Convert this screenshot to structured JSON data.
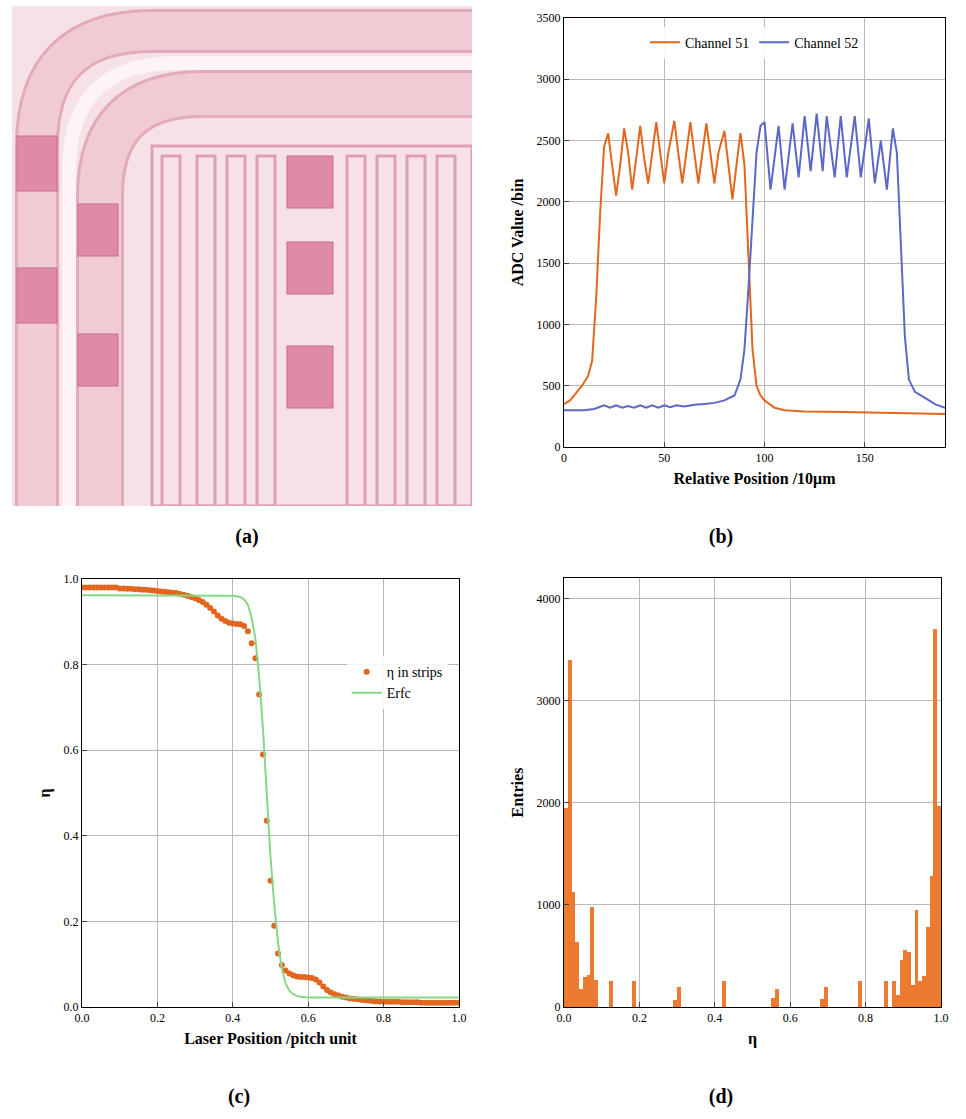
{
  "image_panel": {
    "label": "(a)"
  },
  "chart_data": [
    {
      "type": "line",
      "label": "(b)",
      "x_label": "Relative Position /10μm",
      "y_label": "ADC Value /bin",
      "xlim": [
        0,
        190
      ],
      "xticks": [
        0,
        50,
        100,
        150
      ],
      "ylim": [
        0,
        3500
      ],
      "yticks": [
        0,
        500,
        1000,
        1500,
        2000,
        2500,
        3000,
        3500
      ],
      "grid": true,
      "legend": "top",
      "series": [
        {
          "name": "Channel 51",
          "color": "#e2661f",
          "line_style": "solid",
          "x": [
            0,
            3,
            6,
            9,
            12,
            14,
            16,
            18,
            20,
            22,
            24,
            26,
            28,
            30,
            32,
            34,
            36,
            38,
            40,
            42,
            44,
            46,
            48,
            50,
            52,
            55,
            57,
            59,
            61,
            63,
            65,
            67,
            69,
            71,
            73,
            75,
            77,
            80,
            82,
            84,
            86,
            88,
            90,
            92,
            94,
            96,
            98,
            100,
            105,
            110,
            120,
            140,
            160,
            175,
            190
          ],
          "values": [
            350,
            380,
            440,
            500,
            580,
            700,
            1200,
            1900,
            2450,
            2560,
            2300,
            2050,
            2300,
            2600,
            2400,
            2100,
            2350,
            2620,
            2350,
            2150,
            2400,
            2650,
            2400,
            2150,
            2400,
            2660,
            2400,
            2150,
            2400,
            2650,
            2400,
            2150,
            2400,
            2640,
            2400,
            2150,
            2400,
            2580,
            2300,
            2020,
            2300,
            2560,
            2300,
            1500,
            800,
            500,
            420,
            380,
            320,
            300,
            290,
            285,
            280,
            275,
            270
          ]
        },
        {
          "name": "Channel 52",
          "color": "#5b68c6",
          "line_style": "solid",
          "x": [
            0,
            10,
            15,
            20,
            23,
            26,
            29,
            32,
            35,
            38,
            41,
            44,
            47,
            50,
            53,
            56,
            60,
            65,
            70,
            75,
            80,
            85,
            88,
            90,
            92,
            94,
            96,
            98,
            100,
            103,
            107,
            110,
            114,
            117,
            120,
            123,
            126,
            129,
            131,
            135,
            138,
            141,
            145,
            148,
            152,
            155,
            158,
            161,
            164,
            166,
            168,
            170,
            172,
            175,
            180,
            185,
            190
          ],
          "values": [
            300,
            300,
            310,
            340,
            320,
            340,
            320,
            335,
            320,
            340,
            320,
            340,
            320,
            340,
            325,
            340,
            330,
            345,
            350,
            360,
            380,
            420,
            550,
            800,
            1300,
            1900,
            2400,
            2620,
            2650,
            2100,
            2620,
            2100,
            2640,
            2200,
            2700,
            2250,
            2720,
            2250,
            2700,
            2200,
            2700,
            2200,
            2700,
            2200,
            2680,
            2150,
            2500,
            2100,
            2600,
            2400,
            1600,
            900,
            550,
            450,
            400,
            350,
            320
          ]
        }
      ]
    },
    {
      "type": "scatter",
      "label": "(c)",
      "x_label": "Laser Position /pitch unit",
      "y_label": "η",
      "xlim": [
        0,
        1
      ],
      "xticks": [
        {
          "value": 0,
          "label": "0.0"
        },
        0.2,
        0.4,
        0.6,
        0.8,
        {
          "value": 1,
          "label": "1.0"
        }
      ],
      "ylim": [
        0,
        1
      ],
      "yticks": [
        {
          "value": 0,
          "label": "0.0"
        },
        0.2,
        0.4,
        0.6,
        0.8,
        {
          "value": 1,
          "label": "1.0"
        }
      ],
      "grid": true,
      "legend": "right",
      "series": [
        {
          "name": "η in strips",
          "type": "scatter",
          "marker": "circle",
          "color": "#e2661f",
          "x": [
            0,
            0.01,
            0.02,
            0.03,
            0.04,
            0.05,
            0.06,
            0.07,
            0.08,
            0.09,
            0.1,
            0.11,
            0.12,
            0.13,
            0.14,
            0.15,
            0.16,
            0.17,
            0.18,
            0.19,
            0.2,
            0.21,
            0.22,
            0.23,
            0.24,
            0.25,
            0.26,
            0.27,
            0.28,
            0.29,
            0.3,
            0.31,
            0.32,
            0.33,
            0.34,
            0.35,
            0.36,
            0.37,
            0.38,
            0.39,
            0.4,
            0.41,
            0.42,
            0.43,
            0.44,
            0.45,
            0.46,
            0.47,
            0.48,
            0.49,
            0.5,
            0.51,
            0.52,
            0.53,
            0.54,
            0.55,
            0.56,
            0.57,
            0.58,
            0.59,
            0.6,
            0.61,
            0.62,
            0.63,
            0.64,
            0.65,
            0.66,
            0.67,
            0.68,
            0.69,
            0.7,
            0.71,
            0.72,
            0.73,
            0.74,
            0.75,
            0.76,
            0.77,
            0.78,
            0.79,
            0.8,
            0.81,
            0.82,
            0.83,
            0.84,
            0.85,
            0.86,
            0.87,
            0.88,
            0.89,
            0.9,
            0.91,
            0.92,
            0.93,
            0.94,
            0.95,
            0.96,
            0.97,
            0.98,
            0.99,
            1
          ],
          "values": [
            0.98,
            0.98,
            0.98,
            0.98,
            0.98,
            0.98,
            0.98,
            0.98,
            0.98,
            0.98,
            0.978,
            0.978,
            0.977,
            0.977,
            0.976,
            0.976,
            0.975,
            0.975,
            0.974,
            0.973,
            0.972,
            0.971,
            0.97,
            0.969,
            0.968,
            0.967,
            0.965,
            0.963,
            0.961,
            0.958,
            0.955,
            0.951,
            0.946,
            0.94,
            0.932,
            0.924,
            0.915,
            0.907,
            0.902,
            0.898,
            0.896,
            0.895,
            0.894,
            0.89,
            0.878,
            0.85,
            0.815,
            0.73,
            0.59,
            0.435,
            0.295,
            0.19,
            0.125,
            0.098,
            0.085,
            0.078,
            0.074,
            0.071,
            0.07,
            0.07,
            0.069,
            0.068,
            0.064,
            0.057,
            0.048,
            0.04,
            0.034,
            0.03,
            0.027,
            0.024,
            0.022,
            0.02,
            0.019,
            0.018,
            0.017,
            0.016,
            0.015,
            0.014,
            0.013,
            0.013,
            0.012,
            0.012,
            0.012,
            0.012,
            0.012,
            0.011,
            0.011,
            0.011,
            0.011,
            0.011,
            0.01,
            0.01,
            0.01,
            0.01,
            0.01,
            0.01,
            0.01,
            0.01,
            0.01,
            0.01,
            0.01
          ]
        },
        {
          "name": "Erfc",
          "type": "line",
          "line_style": "solid",
          "color": "#86d886",
          "x": [
            0,
            0.38,
            0.4,
            0.42,
            0.43,
            0.44,
            0.45,
            0.46,
            0.47,
            0.48,
            0.49,
            0.5,
            0.51,
            0.52,
            0.53,
            0.54,
            0.55,
            0.56,
            0.57,
            0.58,
            0.6,
            0.62,
            1
          ],
          "values": [
            0.962,
            0.962,
            0.961,
            0.958,
            0.952,
            0.94,
            0.91,
            0.86,
            0.77,
            0.65,
            0.5,
            0.35,
            0.24,
            0.15,
            0.09,
            0.055,
            0.038,
            0.03,
            0.026,
            0.024,
            0.022,
            0.022,
            0.022
          ]
        }
      ]
    },
    {
      "type": "histogram",
      "label": "(d)",
      "x_label": "η",
      "y_label": "Entries",
      "color": "#ec7a30",
      "xlim": [
        0,
        1
      ],
      "xticks": [
        {
          "value": 0,
          "label": "0.0"
        },
        0.2,
        0.4,
        0.6,
        0.8,
        {
          "value": 1,
          "label": "1.0"
        }
      ],
      "ylim": [
        0,
        4200
      ],
      "yticks": [
        0,
        1000,
        2000,
        3000,
        4000
      ],
      "grid": true,
      "bins": [
        0,
        0.01,
        0.02,
        0.03,
        0.04,
        0.05,
        0.06,
        0.07,
        0.08,
        0.09,
        0.1,
        0.11,
        0.12,
        0.13,
        0.14,
        0.15,
        0.16,
        0.17,
        0.18,
        0.19,
        0.2,
        0.21,
        0.22,
        0.23,
        0.24,
        0.25,
        0.26,
        0.27,
        0.28,
        0.29,
        0.3,
        0.31,
        0.32,
        0.33,
        0.34,
        0.35,
        0.36,
        0.37,
        0.38,
        0.39,
        0.4,
        0.41,
        0.42,
        0.43,
        0.44,
        0.45,
        0.46,
        0.47,
        0.48,
        0.49,
        0.5,
        0.51,
        0.52,
        0.53,
        0.54,
        0.55,
        0.56,
        0.57,
        0.58,
        0.59,
        0.6,
        0.61,
        0.62,
        0.63,
        0.64,
        0.65,
        0.66,
        0.67,
        0.68,
        0.69,
        0.7,
        0.71,
        0.72,
        0.73,
        0.74,
        0.75,
        0.76,
        0.77,
        0.78,
        0.79,
        0.8,
        0.81,
        0.82,
        0.83,
        0.84,
        0.85,
        0.86,
        0.87,
        0.88,
        0.89,
        0.9,
        0.91,
        0.92,
        0.93,
        0.94,
        0.95,
        0.96,
        0.97,
        0.98,
        0.99,
        1
      ],
      "counts": [
        1950,
        3400,
        1130,
        640,
        180,
        290,
        310,
        980,
        260,
        0,
        0,
        0,
        250,
        0,
        0,
        0,
        0,
        0,
        250,
        0,
        0,
        0,
        0,
        0,
        0,
        0,
        0,
        0,
        0,
        70,
        200,
        0,
        0,
        0,
        0,
        0,
        0,
        0,
        0,
        0,
        0,
        0,
        250,
        0,
        0,
        0,
        0,
        0,
        0,
        0,
        0,
        0,
        0,
        0,
        0,
        90,
        180,
        0,
        0,
        0,
        0,
        0,
        0,
        0,
        0,
        0,
        0,
        0,
        80,
        200,
        0,
        0,
        0,
        0,
        0,
        0,
        0,
        0,
        250,
        0,
        0,
        0,
        0,
        0,
        0,
        250,
        0,
        250,
        120,
        460,
        560,
        540,
        220,
        950,
        250,
        300,
        780,
        1280,
        3700,
        1970
      ]
    }
  ]
}
